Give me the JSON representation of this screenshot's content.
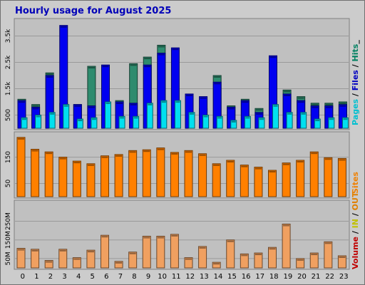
{
  "chart_data": {
    "type": "bar",
    "title": "Hourly usage for August 2025",
    "categories": [
      "0",
      "1",
      "2",
      "3",
      "4",
      "5",
      "6",
      "7",
      "8",
      "9",
      "10",
      "11",
      "12",
      "13",
      "14",
      "15",
      "16",
      "17",
      "18",
      "19",
      "20",
      "21",
      "22",
      "23"
    ],
    "panels": [
      {
        "id": "top",
        "ylim": [
          0,
          4000
        ],
        "yticks": [
          {
            "value": 500,
            "label": "500"
          },
          {
            "value": 1500,
            "label": "1.5k"
          },
          {
            "value": 2500,
            "label": "2.5k"
          },
          {
            "value": 3500,
            "label": "3.5k"
          }
        ],
        "legend": [
          {
            "text": "Pages",
            "color": "#00c0d0"
          },
          {
            "text": " / ",
            "color": "#000000"
          },
          {
            "text": "Files",
            "color": "#0000c0"
          },
          {
            "text": " / ",
            "color": "#000000"
          },
          {
            "text": "Hits",
            "color": "#008060"
          },
          {
            "text": "_",
            "color": "#000000"
          }
        ],
        "series": [
          {
            "name": "Hits",
            "color": "#2e8b6e",
            "values": [
              1100,
              900,
              2100,
              950,
              900,
              2350,
              1150,
              1050,
              2450,
              2700,
              3150,
              1450,
              1250,
              750,
              2000,
              850,
              1100,
              750,
              2600,
              1450,
              1200,
              950,
              950,
              1000
            ]
          },
          {
            "name": "Files",
            "color": "#0000f0",
            "values": [
              1050,
              800,
              2000,
              3900,
              900,
              850,
              2400,
              1000,
              950,
              2400,
              2850,
              3050,
              1300,
              1200,
              1750,
              800,
              1050,
              600,
              2750,
              1300,
              1050,
              850,
              850,
              900
            ]
          },
          {
            "name": "Pages",
            "color": "#00e0f0",
            "values": [
              400,
              500,
              600,
              900,
              350,
              400,
              1000,
              450,
              450,
              950,
              1050,
              1050,
              600,
              500,
              450,
              300,
              450,
              400,
              900,
              600,
              600,
              350,
              400,
              400
            ]
          }
        ]
      },
      {
        "id": "middle",
        "ylim": [
          0,
          230
        ],
        "yticks": [
          {
            "value": 50,
            "label": "50"
          },
          {
            "value": 150,
            "label": "150"
          }
        ],
        "legend": [
          {
            "text": "Sites",
            "color": "#f08000"
          }
        ],
        "series": [
          {
            "name": "Sites",
            "color": "#ff8000",
            "values": [
              225,
              180,
              170,
              150,
              135,
              125,
              155,
              160,
              175,
              178,
              185,
              168,
              175,
              163,
              125,
              138,
              120,
              112,
              100,
              128,
              138,
              170,
              148,
              145
            ]
          }
        ]
      },
      {
        "id": "bottom",
        "ylim": [
          0,
          340000
        ],
        "yticks": [
          {
            "value": 50000,
            "label": "50M"
          },
          {
            "value": 150000,
            "label": "150M"
          },
          {
            "value": 250000,
            "label": "250M"
          }
        ],
        "legend": [
          {
            "text": "Volume",
            "color": "#c00000"
          },
          {
            "text": " / ",
            "color": "#000000"
          },
          {
            "text": "IN",
            "color": "#c0c000"
          },
          {
            "text": " / ",
            "color": "#000000"
          },
          {
            "text": "OUT",
            "color": "#e08000"
          }
        ],
        "series": [
          {
            "name": "Volume",
            "color": "#f0a060",
            "values": [
              105000,
              100000,
              40000,
              100000,
              55000,
              95000,
              175000,
              35000,
              85000,
              170000,
              170000,
              180000,
              55000,
              115000,
              30000,
              150000,
              75000,
              80000,
              110000,
              235000,
              50000,
              80000,
              140000,
              65000
            ]
          }
        ]
      }
    ]
  }
}
